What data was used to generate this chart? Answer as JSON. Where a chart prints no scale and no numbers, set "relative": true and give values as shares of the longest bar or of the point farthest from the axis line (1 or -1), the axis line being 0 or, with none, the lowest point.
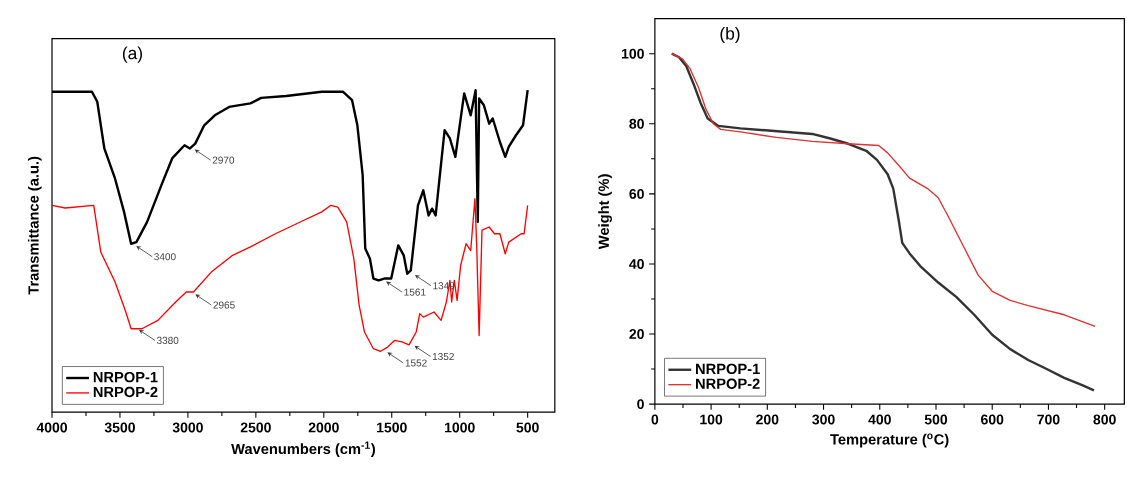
{
  "chart_data": [
    {
      "type": "line",
      "title": "(a)",
      "xlabel": "Wavenumbers (cm$^{-1}$)",
      "ylabel": "Transmittance (a.u.)",
      "relative": true,
      "xlim": [
        4000,
        300
      ],
      "xticks": [
        4000,
        3500,
        3000,
        2500,
        2000,
        1500,
        1000,
        500
      ],
      "legend": "bottom left",
      "grid": false,
      "series": [
        {
          "name": "NRPOP-1",
          "color": "#000000",
          "x": [
            4000,
            3706,
            3667,
            3615,
            3536,
            3470,
            3418,
            3379,
            3300,
            3195,
            3116,
            3025,
            2985,
            2946,
            2880,
            2802,
            2697,
            2540,
            2461,
            2277,
            2015,
            1858,
            1792,
            1753,
            1714,
            1695,
            1661,
            1635,
            1596,
            1556,
            1504,
            1452,
            1412,
            1386,
            1360,
            1307,
            1268,
            1229,
            1203,
            1177,
            1111,
            1072,
            1032,
            967,
            919,
            883,
            867,
            857,
            822,
            783,
            757,
            704,
            665,
            639,
            586,
            534,
            500
          ],
          "values": [
            0.995,
            0.995,
            0.964,
            0.819,
            0.725,
            0.622,
            0.523,
            0.528,
            0.591,
            0.705,
            0.788,
            0.829,
            0.819,
            0.834,
            0.891,
            0.922,
            0.948,
            0.959,
            0.976,
            0.982,
            0.995,
            0.995,
            0.969,
            0.891,
            0.736,
            0.508,
            0.477,
            0.415,
            0.409,
            0.415,
            0.415,
            0.518,
            0.487,
            0.43,
            0.44,
            0.642,
            0.689,
            0.611,
            0.632,
            0.611,
            0.876,
            0.85,
            0.793,
            0.99,
            0.922,
            1.0,
            0.591,
            0.974,
            0.953,
            0.896,
            0.912,
            0.839,
            0.793,
            0.824,
            0.86,
            0.891,
            1.0
          ]
        },
        {
          "name": "NRPOP-2",
          "color": "#ff0000",
          "x": [
            4000,
            3903,
            3693,
            3641,
            3536,
            3457,
            3418,
            3339,
            3221,
            3090,
            3012,
            2959,
            2828,
            2671,
            2540,
            2356,
            2146,
            2015,
            1950,
            1897,
            1832,
            1779,
            1740,
            1701,
            1635,
            1583,
            1530,
            1478,
            1425,
            1373,
            1320,
            1294,
            1268,
            1189,
            1137,
            1098,
            1072,
            1059,
            1040,
            1019,
            993,
            953,
            919,
            888,
            875,
            857,
            836,
            783,
            744,
            704,
            665,
            639,
            547,
            526,
            500
          ],
          "values": [
            0.642,
            0.634,
            0.642,
            0.497,
            0.404,
            0.311,
            0.259,
            0.259,
            0.285,
            0.342,
            0.373,
            0.373,
            0.435,
            0.487,
            0.513,
            0.554,
            0.596,
            0.622,
            0.642,
            0.637,
            0.591,
            0.477,
            0.332,
            0.249,
            0.197,
            0.189,
            0.202,
            0.223,
            0.218,
            0.209,
            0.249,
            0.306,
            0.295,
            0.311,
            0.285,
            0.342,
            0.409,
            0.342,
            0.409,
            0.347,
            0.456,
            0.523,
            0.502,
            0.663,
            0.518,
            0.238,
            0.565,
            0.575,
            0.554,
            0.554,
            0.492,
            0.528,
            0.554,
            0.554,
            0.642
          ]
        }
      ],
      "annotations": [
        {
          "text": "3400",
          "x": 3400,
          "y": 0.52
        },
        {
          "text": "2970",
          "x": 2970,
          "y": 0.82
        },
        {
          "text": "1561",
          "x": 1561,
          "y": 0.41
        },
        {
          "text": "1349",
          "x": 1349,
          "y": 0.43
        },
        {
          "text": "3380",
          "x": 3380,
          "y": 0.26
        },
        {
          "text": "2965",
          "x": 2965,
          "y": 0.37
        },
        {
          "text": "1552",
          "x": 1552,
          "y": 0.19
        },
        {
          "text": "1352",
          "x": 1352,
          "y": 0.21
        }
      ]
    },
    {
      "type": "line",
      "title": "(b)",
      "xlabel": "Temperature ($^{o}$C)",
      "ylabel": "Weight (%)",
      "xlim": [
        0,
        835
      ],
      "xticks": [
        0,
        100,
        200,
        300,
        400,
        500,
        600,
        700,
        800
      ],
      "ylim": [
        0,
        110
      ],
      "yticks": [
        0,
        20,
        40,
        60,
        80,
        100
      ],
      "legend": "bottom left",
      "grid": false,
      "series": [
        {
          "name": "NRPOP-1",
          "color": "#333333",
          "x": [
            30,
            43,
            56,
            69,
            81,
            94,
            113,
            152,
            216,
            280,
            312,
            344,
            376,
            395,
            414,
            424,
            434,
            440,
            453,
            472,
            504,
            536,
            568,
            600,
            632,
            664,
            696,
            728,
            760,
            781
          ],
          "values": [
            100,
            99,
            96.4,
            91.3,
            86.1,
            81.5,
            79.4,
            78.7,
            77.9,
            77.1,
            75.8,
            74.3,
            72.3,
            69.7,
            65.6,
            61.5,
            52.2,
            46,
            43,
            39.4,
            34.7,
            30.6,
            25.5,
            19.8,
            15.7,
            12.6,
            10.1,
            7.5,
            5.4,
            3.9
          ]
        },
        {
          "name": "NRPOP-2",
          "color": "#e03030",
          "x": [
            30,
            49,
            62,
            78,
            91,
            104,
            117,
            152,
            216,
            280,
            344,
            398,
            414,
            434,
            453,
            485,
            504,
            523,
            549,
            575,
            600,
            632,
            664,
            728,
            783
          ],
          "values": [
            100,
            98.5,
            95.9,
            90.2,
            84.1,
            80,
            78.4,
            77.7,
            76.1,
            75,
            74.3,
            73.8,
            71.7,
            68.1,
            64.5,
            61.5,
            58.9,
            53.2,
            45,
            36.8,
            32.2,
            29.6,
            28.1,
            25.5,
            22.2
          ]
        }
      ]
    }
  ]
}
